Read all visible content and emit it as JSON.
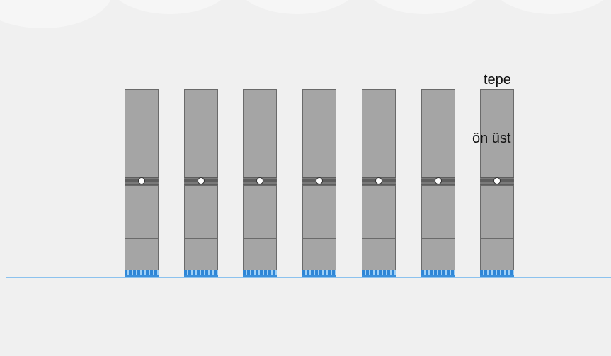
{
  "labels": {
    "top": "tepe",
    "front_top": "ön üst"
  },
  "colors": {
    "background": "#f0f0f0",
    "post_fill": "#a5a5a5",
    "post_border": "#6a6a6a",
    "band": "#5e5e5e",
    "pivot": "#ffffff",
    "feet": "#2f86d6",
    "ground_line": "#8cc2ee"
  },
  "posts": [
    {
      "id": 1
    },
    {
      "id": 2
    },
    {
      "id": 3
    },
    {
      "id": 4
    },
    {
      "id": 5
    },
    {
      "id": 6
    },
    {
      "id": 7
    }
  ]
}
